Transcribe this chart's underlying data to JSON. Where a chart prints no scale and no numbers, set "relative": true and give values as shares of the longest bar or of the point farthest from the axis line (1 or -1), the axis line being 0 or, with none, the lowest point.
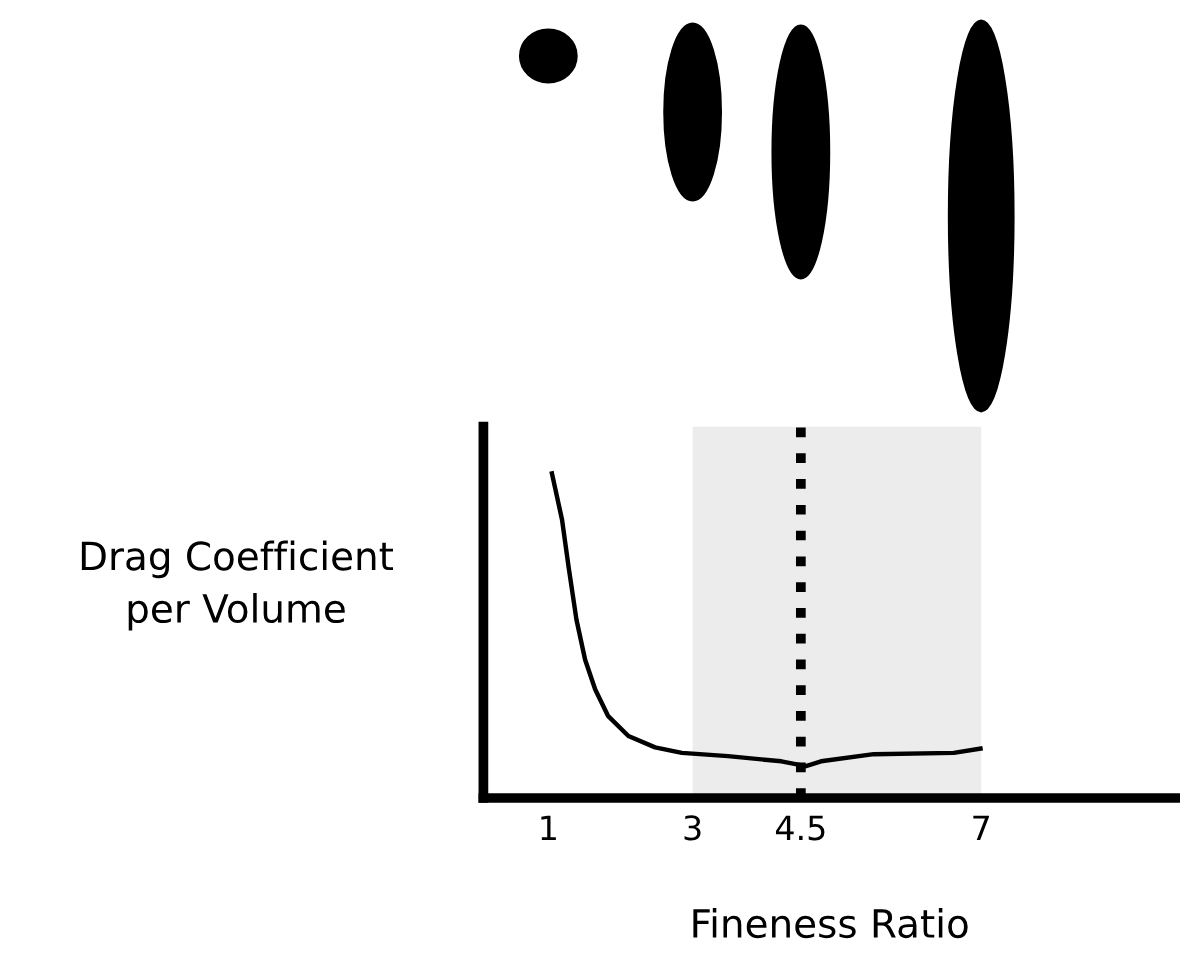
{
  "chart_data": {
    "type": "line",
    "relative": true,
    "xlabel": "Fineness Ratio",
    "ylabel": "Drag Coefficient\nper Volume",
    "xlim": [
      0.1,
      9.7
    ],
    "xticks": [
      1,
      3,
      4.5,
      7
    ],
    "grid": false,
    "legend": false,
    "marker": "none",
    "line_style": "solid",
    "series": [
      {
        "color": "#000000",
        "x": [
          1.05,
          1.19,
          1.28,
          1.39,
          1.51,
          1.65,
          1.83,
          2.11,
          2.48,
          2.85,
          3.49,
          4.23,
          4.57,
          4.78,
          5.51,
          6.62,
          6.99
        ],
        "values": [
          1.0,
          0.857,
          0.713,
          0.549,
          0.426,
          0.334,
          0.252,
          0.191,
          0.156,
          0.139,
          0.129,
          0.113,
          0.098,
          0.113,
          0.135,
          0.139,
          0.152
        ]
      }
    ],
    "bands": [
      {
        "axis": "x",
        "from": 3,
        "to": 7,
        "color": "#ececec"
      }
    ],
    "ref_lines": [
      {
        "axis": "x",
        "value": 4.5,
        "color": "#000000",
        "line_style": "dotted"
      }
    ]
  }
}
